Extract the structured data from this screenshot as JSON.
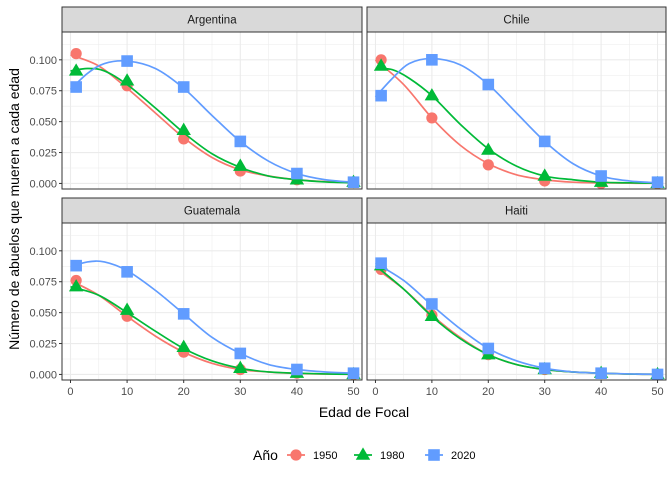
{
  "chart_data": {
    "type": "line",
    "xlabel": "Edad de Focal",
    "ylabel": "Número de abuelos que mueren a cada edad",
    "x_ticks": [
      0,
      10,
      20,
      30,
      40,
      50
    ],
    "y_ticks": [
      "0.000",
      "0.025",
      "0.050",
      "0.075",
      "0.100"
    ],
    "xlim": [
      -1.5,
      51.5
    ],
    "ylim": [
      -0.0045,
      0.1225
    ],
    "grid": true,
    "legend": {
      "title": "Año",
      "position": "bottom",
      "entries": [
        {
          "name": "1950",
          "color": "#F8766D",
          "marker": "circle"
        },
        {
          "name": "1980",
          "color": "#00BA38",
          "marker": "triangle"
        },
        {
          "name": "2020",
          "color": "#619CFF",
          "marker": "square"
        }
      ]
    },
    "x": [
      1,
      10,
      20,
      30,
      40,
      50
    ],
    "panels": [
      {
        "title": "Argentina",
        "series": [
          {
            "name": "1950",
            "values": [
              0.105,
              0.079,
              0.036,
              0.01,
              0.003,
              0.001
            ],
            "curve": [
              [
                0,
                0.104
              ],
              [
                5,
                0.095
              ],
              [
                10,
                0.077
              ],
              [
                15,
                0.057
              ],
              [
                20,
                0.037
              ],
              [
                25,
                0.021
              ],
              [
                30,
                0.011
              ],
              [
                35,
                0.006
              ],
              [
                40,
                0.003
              ],
              [
                45,
                0.0015
              ],
              [
                50,
                0.001
              ]
            ]
          },
          {
            "name": "1980",
            "values": [
              0.091,
              0.083,
              0.043,
              0.014,
              0.003,
              0.001
            ],
            "curve": [
              [
                0,
                0.091
              ],
              [
                3,
                0.093
              ],
              [
                6,
                0.091
              ],
              [
                10,
                0.08
              ],
              [
                15,
                0.061
              ],
              [
                20,
                0.041
              ],
              [
                25,
                0.024
              ],
              [
                30,
                0.013
              ],
              [
                35,
                0.006
              ],
              [
                40,
                0.003
              ],
              [
                45,
                0.0012
              ],
              [
                50,
                0.0005
              ]
            ]
          },
          {
            "name": "2020",
            "values": [
              0.078,
              0.099,
              0.078,
              0.034,
              0.008,
              0.001
            ],
            "curve": [
              [
                0,
                0.076
              ],
              [
                3,
                0.089
              ],
              [
                6,
                0.097
              ],
              [
                10,
                0.099
              ],
              [
                15,
                0.093
              ],
              [
                20,
                0.077
              ],
              [
                25,
                0.055
              ],
              [
                30,
                0.034
              ],
              [
                35,
                0.018
              ],
              [
                40,
                0.008
              ],
              [
                45,
                0.003
              ],
              [
                50,
                0.001
              ]
            ]
          }
        ]
      },
      {
        "title": "Chile",
        "series": [
          {
            "name": "1950",
            "values": [
              0.1,
              0.053,
              0.015,
              0.002,
              0.0,
              0.0
            ],
            "curve": [
              [
                0,
                0.1
              ],
              [
                5,
                0.08
              ],
              [
                10,
                0.053
              ],
              [
                15,
                0.031
              ],
              [
                20,
                0.016
              ],
              [
                25,
                0.007
              ],
              [
                30,
                0.003
              ],
              [
                35,
                0.001
              ],
              [
                40,
                0.0005
              ],
              [
                45,
                0.0002
              ],
              [
                50,
                0.0001
              ]
            ]
          },
          {
            "name": "1980",
            "values": [
              0.095,
              0.071,
              0.027,
              0.006,
              0.001,
              0.0
            ],
            "curve": [
              [
                0,
                0.093
              ],
              [
                3,
                0.092
              ],
              [
                6,
                0.085
              ],
              [
                10,
                0.071
              ],
              [
                15,
                0.048
              ],
              [
                20,
                0.028
              ],
              [
                25,
                0.014
              ],
              [
                30,
                0.006
              ],
              [
                35,
                0.003
              ],
              [
                40,
                0.001
              ],
              [
                45,
                0.0005
              ],
              [
                50,
                0.0002
              ]
            ]
          },
          {
            "name": "2020",
            "values": [
              0.071,
              0.1,
              0.08,
              0.034,
              0.006,
              0.001
            ],
            "curve": [
              [
                0,
                0.07
              ],
              [
                3,
                0.085
              ],
              [
                6,
                0.097
              ],
              [
                10,
                0.101
              ],
              [
                15,
                0.096
              ],
              [
                20,
                0.08
              ],
              [
                25,
                0.057
              ],
              [
                30,
                0.034
              ],
              [
                35,
                0.016
              ],
              [
                40,
                0.006
              ],
              [
                45,
                0.002
              ],
              [
                50,
                0.0005
              ]
            ]
          }
        ]
      },
      {
        "title": "Guatemala",
        "series": [
          {
            "name": "1950",
            "values": [
              0.076,
              0.047,
              0.018,
              0.004,
              0.001,
              0.0
            ],
            "curve": [
              [
                0,
                0.076
              ],
              [
                5,
                0.064
              ],
              [
                10,
                0.047
              ],
              [
                15,
                0.031
              ],
              [
                20,
                0.018
              ],
              [
                25,
                0.009
              ],
              [
                30,
                0.004
              ],
              [
                35,
                0.002
              ],
              [
                40,
                0.0008
              ],
              [
                45,
                0.0003
              ],
              [
                50,
                0.0001
              ]
            ]
          },
          {
            "name": "1980",
            "values": [
              0.071,
              0.052,
              0.022,
              0.005,
              0.001,
              0.0
            ],
            "curve": [
              [
                0,
                0.071
              ],
              [
                5,
                0.064
              ],
              [
                10,
                0.05
              ],
              [
                15,
                0.035
              ],
              [
                20,
                0.021
              ],
              [
                25,
                0.011
              ],
              [
                30,
                0.005
              ],
              [
                35,
                0.002
              ],
              [
                40,
                0.001
              ],
              [
                45,
                0.0004
              ],
              [
                50,
                0.0001
              ]
            ]
          },
          {
            "name": "2020",
            "values": [
              0.088,
              0.083,
              0.049,
              0.017,
              0.004,
              0.001
            ],
            "curve": [
              [
                0,
                0.087
              ],
              [
                3,
                0.091
              ],
              [
                6,
                0.091
              ],
              [
                10,
                0.084
              ],
              [
                15,
                0.068
              ],
              [
                20,
                0.049
              ],
              [
                25,
                0.03
              ],
              [
                30,
                0.017
              ],
              [
                35,
                0.008
              ],
              [
                40,
                0.004
              ],
              [
                45,
                0.002
              ],
              [
                50,
                0.001
              ]
            ]
          }
        ]
      },
      {
        "title": "Haiti",
        "series": [
          {
            "name": "1950",
            "values": [
              0.085,
              0.048,
              0.016,
              0.004,
              0.001,
              0.0
            ],
            "curve": [
              [
                0,
                0.086
              ],
              [
                5,
                0.069
              ],
              [
                10,
                0.048
              ],
              [
                15,
                0.03
              ],
              [
                20,
                0.016
              ],
              [
                25,
                0.008
              ],
              [
                30,
                0.004
              ],
              [
                35,
                0.002
              ],
              [
                40,
                0.001
              ],
              [
                45,
                0.0003
              ],
              [
                50,
                0.0001
              ]
            ]
          },
          {
            "name": "1980",
            "values": [
              0.088,
              0.047,
              0.016,
              0.004,
              0.001,
              0.0
            ],
            "curve": [
              [
                0,
                0.088
              ],
              [
                5,
                0.069
              ],
              [
                10,
                0.047
              ],
              [
                15,
                0.029
              ],
              [
                20,
                0.016
              ],
              [
                25,
                0.008
              ],
              [
                30,
                0.004
              ],
              [
                35,
                0.002
              ],
              [
                40,
                0.001
              ],
              [
                45,
                0.0003
              ],
              [
                50,
                0.0001
              ]
            ]
          },
          {
            "name": "2020",
            "values": [
              0.09,
              0.057,
              0.021,
              0.005,
              0.001,
              0.0
            ],
            "curve": [
              [
                0,
                0.09
              ],
              [
                5,
                0.076
              ],
              [
                10,
                0.056
              ],
              [
                15,
                0.037
              ],
              [
                20,
                0.021
              ],
              [
                25,
                0.011
              ],
              [
                30,
                0.005
              ],
              [
                35,
                0.002
              ],
              [
                40,
                0.001
              ],
              [
                45,
                0.0004
              ],
              [
                50,
                0.0001
              ]
            ]
          }
        ]
      }
    ]
  }
}
